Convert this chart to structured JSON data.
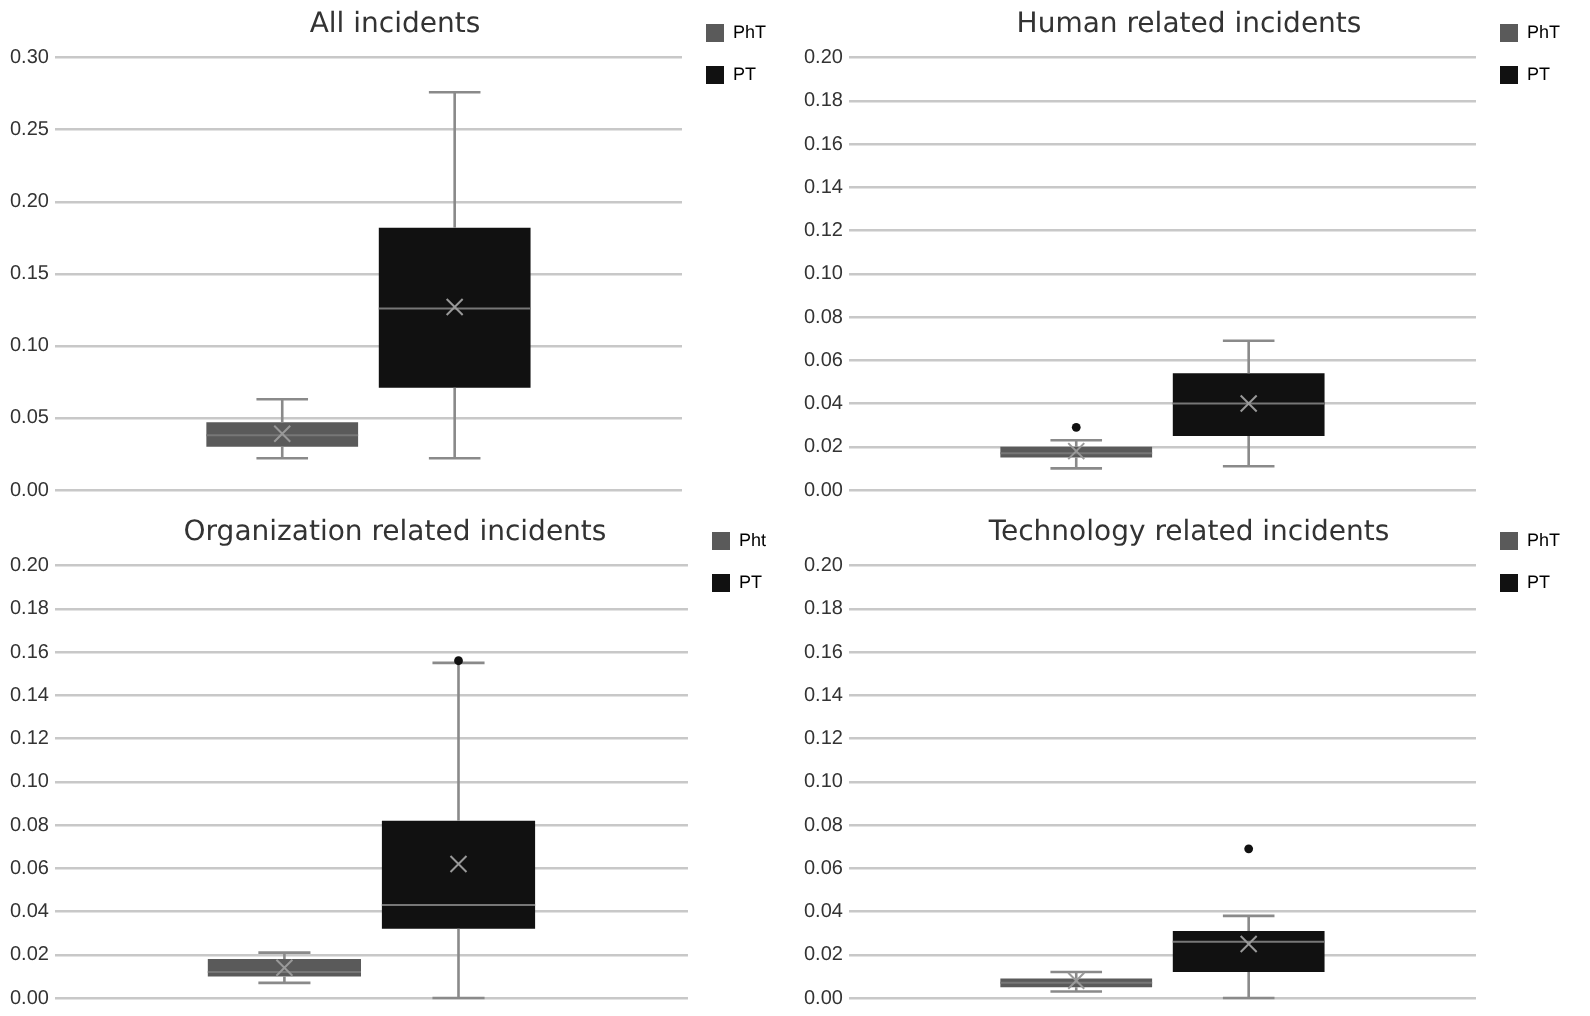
{
  "chart_data": [
    {
      "type": "box",
      "title": "All incidents",
      "categories": [
        null
      ],
      "legend": "top right",
      "grid": "y",
      "tick_labels": "y",
      "ylim": [
        0,
        0.3
      ],
      "yticks": [
        {
          "value": 0,
          "label": "0.00"
        },
        {
          "value": 0.05,
          "label": "0.05"
        },
        {
          "value": 0.1,
          "label": "0.10"
        },
        {
          "value": 0.15,
          "label": "0.15"
        },
        {
          "value": 0.2,
          "label": "0.20"
        },
        {
          "value": 0.25,
          "label": "0.25"
        },
        {
          "value": 0.3,
          "label": "0.30"
        }
      ],
      "series": [
        {
          "name": "PhT",
          "color": "#5a5a5a",
          "boxes": [
            {
              "low": 0.022,
              "q1": 0.03,
              "median": 0.038,
              "q3": 0.047,
              "high": 0.063,
              "mean": 0.039
            }
          ]
        },
        {
          "name": "PT",
          "color": "#111111",
          "boxes": [
            {
              "low": 0.022,
              "q1": 0.071,
              "median": 0.126,
              "q3": 0.182,
              "high": 0.276,
              "mean": 0.127
            }
          ]
        }
      ]
    },
    {
      "type": "box",
      "title": "Human related incidents",
      "categories": [
        null
      ],
      "legend": "top right",
      "grid": "y",
      "tick_labels": "y",
      "ylim": [
        0,
        0.2
      ],
      "yticks": [
        {
          "value": 0,
          "label": "0.00"
        },
        {
          "value": 0.02,
          "label": "0.02"
        },
        {
          "value": 0.04,
          "label": "0.04"
        },
        {
          "value": 0.06,
          "label": "0.06"
        },
        {
          "value": 0.08,
          "label": "0.08"
        },
        {
          "value": 0.1,
          "label": "0.10"
        },
        {
          "value": 0.12,
          "label": "0.12"
        },
        {
          "value": 0.14,
          "label": "0.14"
        },
        {
          "value": 0.16,
          "label": "0.16"
        },
        {
          "value": 0.18,
          "label": "0.18"
        },
        {
          "value": 0.2,
          "label": "0.20"
        }
      ],
      "series": [
        {
          "name": "PhT",
          "color": "#5a5a5a",
          "boxes": [
            {
              "low": 0.01,
              "q1": 0.015,
              "median": 0.017,
              "q3": 0.02,
              "high": 0.023,
              "mean": 0.018,
              "outliers": [
                0.029
              ]
            }
          ]
        },
        {
          "name": "PT",
          "color": "#111111",
          "boxes": [
            {
              "low": 0.011,
              "q1": 0.025,
              "median": 0.04,
              "q3": 0.054,
              "high": 0.069,
              "mean": 0.04
            }
          ]
        }
      ]
    },
    {
      "type": "box",
      "title": "Organization related incidents",
      "categories": [
        null
      ],
      "legend": "top right",
      "grid": "y",
      "tick_labels": "y",
      "ylim": [
        0,
        0.2
      ],
      "yticks": [
        {
          "value": 0,
          "label": "0.00"
        },
        {
          "value": 0.02,
          "label": "0.02"
        },
        {
          "value": 0.04,
          "label": "0.04"
        },
        {
          "value": 0.06,
          "label": "0.06"
        },
        {
          "value": 0.08,
          "label": "0.08"
        },
        {
          "value": 0.1,
          "label": "0.10"
        },
        {
          "value": 0.12,
          "label": "0.12"
        },
        {
          "value": 0.14,
          "label": "0.14"
        },
        {
          "value": 0.16,
          "label": "0.16"
        },
        {
          "value": 0.18,
          "label": "0.18"
        },
        {
          "value": 0.2,
          "label": "0.20"
        }
      ],
      "series": [
        {
          "name": "Pht",
          "color": "#5a5a5a",
          "boxes": [
            {
              "low": 0.007,
              "q1": 0.01,
              "median": 0.012,
              "q3": 0.018,
              "high": 0.021,
              "mean": 0.014
            }
          ]
        },
        {
          "name": "PT",
          "color": "#111111",
          "boxes": [
            {
              "low": 0,
              "q1": 0.032,
              "median": 0.043,
              "q3": 0.082,
              "high": 0.155,
              "mean": 0.062,
              "outliers": [
                0.156
              ]
            }
          ]
        }
      ]
    },
    {
      "type": "box",
      "title": "Technology related incidents",
      "categories": [
        null
      ],
      "legend": "top right",
      "grid": "y",
      "tick_labels": "y",
      "ylim": [
        0,
        0.2
      ],
      "yticks": [
        {
          "value": 0,
          "label": "0.00"
        },
        {
          "value": 0.02,
          "label": "0.02"
        },
        {
          "value": 0.04,
          "label": "0.04"
        },
        {
          "value": 0.06,
          "label": "0.06"
        },
        {
          "value": 0.08,
          "label": "0.08"
        },
        {
          "value": 0.1,
          "label": "0.10"
        },
        {
          "value": 0.12,
          "label": "0.12"
        },
        {
          "value": 0.14,
          "label": "0.14"
        },
        {
          "value": 0.16,
          "label": "0.16"
        },
        {
          "value": 0.18,
          "label": "0.18"
        },
        {
          "value": 0.2,
          "label": "0.20"
        }
      ],
      "series": [
        {
          "name": "PhT",
          "color": "#5a5a5a",
          "boxes": [
            {
              "low": 0.003,
              "q1": 0.005,
              "median": 0.007,
              "q3": 0.009,
              "high": 0.012,
              "mean": 0.008
            }
          ]
        },
        {
          "name": "PT",
          "color": "#111111",
          "boxes": [
            {
              "low": 0,
              "q1": 0.012,
              "median": 0.026,
              "q3": 0.031,
              "high": 0.038,
              "mean": 0.025,
              "outliers": [
                0.069
              ]
            }
          ]
        }
      ]
    }
  ]
}
